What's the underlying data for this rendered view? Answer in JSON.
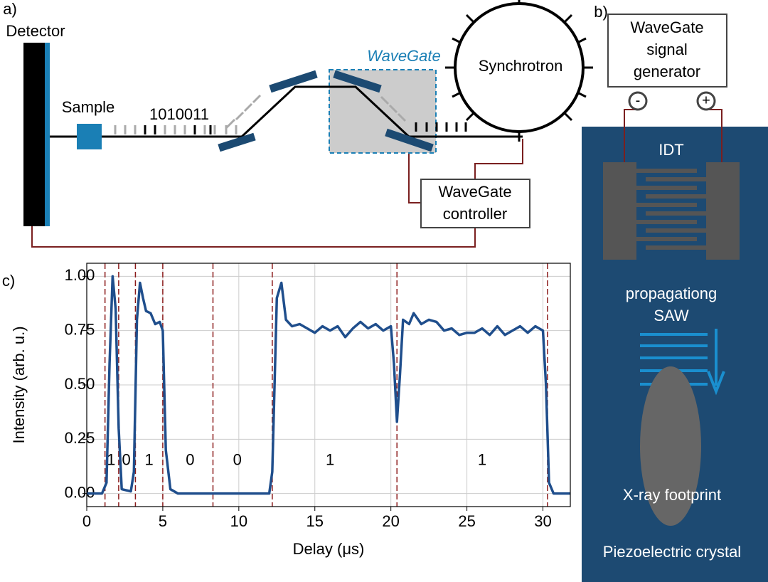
{
  "panels": {
    "a": "a)",
    "b": "b)",
    "c": "c)"
  },
  "diagram_a": {
    "detector": "Detector",
    "sample": "Sample",
    "bits": "1010011",
    "wavegate": "WaveGate",
    "synchrotron": "Synchrotron",
    "controller": [
      "WaveGate",
      "controller"
    ]
  },
  "diagram_b": {
    "generator": [
      "WaveGate",
      "signal",
      "generator"
    ],
    "minus": "-",
    "plus": "+",
    "idt": "IDT",
    "saw": [
      "propagationg",
      "SAW"
    ],
    "footprint": "X-ray footprint",
    "crystal": "Piezoelectric crystal"
  },
  "chart_data": {
    "type": "line",
    "x_label": "Delay (μs)",
    "y_label": "Intensity (arb. u.)",
    "xlim": [
      0,
      31.8
    ],
    "ylim": [
      -0.06,
      1.06
    ],
    "xticks": [
      0,
      5,
      10,
      15,
      20,
      25,
      30
    ],
    "yticks": [
      {
        "value": 0,
        "label": "0.00"
      },
      {
        "value": 0.25,
        "label": "0.25"
      },
      {
        "value": 0.5,
        "label": "0.50"
      },
      {
        "value": 0.75,
        "label": "0.75"
      },
      {
        "value": 1,
        "label": "1.00"
      }
    ],
    "grid": true,
    "vlines": {
      "color": "#8b1a1a",
      "x": [
        1.2,
        2.1,
        3.2,
        5.0,
        8.3,
        12.2,
        20.4,
        30.3
      ]
    },
    "bit_labels": [
      {
        "text": "1",
        "x": 1.6,
        "y": 0.15
      },
      {
        "text": "0",
        "x": 2.6,
        "y": 0.15
      },
      {
        "text": "1",
        "x": 4.1,
        "y": 0.15
      },
      {
        "text": "0",
        "x": 6.8,
        "y": 0.15
      },
      {
        "text": "0",
        "x": 9.9,
        "y": 0.15
      },
      {
        "text": "1",
        "x": 16,
        "y": 0.15
      },
      {
        "text": "1",
        "x": 26,
        "y": 0.15
      }
    ],
    "series": [
      {
        "color": "#1f4e8c",
        "x": [
          0,
          1.0,
          1.3,
          1.5,
          1.7,
          1.9,
          2.1,
          2.3,
          2.9,
          3.1,
          3.3,
          3.5,
          3.7,
          3.9,
          4.2,
          4.5,
          4.8,
          5.0,
          5.2,
          5.5,
          6,
          8,
          10,
          12,
          12.2,
          12.5,
          12.8,
          13.1,
          13.5,
          14,
          14.5,
          15,
          15.5,
          16,
          16.5,
          17,
          17.5,
          18,
          18.5,
          19,
          19.5,
          20,
          20.2,
          20.4,
          20.6,
          20.8,
          21.2,
          21.5,
          22,
          22.5,
          23,
          23.5,
          24,
          24.5,
          25,
          25.5,
          26,
          26.5,
          27,
          27.5,
          28,
          28.5,
          29,
          29.5,
          30,
          30.2,
          30.4,
          30.7,
          31.8
        ],
        "values": [
          0,
          0,
          0.05,
          0.6,
          1.0,
          0.85,
          0.3,
          0.02,
          0.01,
          0.1,
          0.8,
          0.97,
          0.9,
          0.84,
          0.83,
          0.78,
          0.79,
          0.75,
          0.2,
          0.02,
          0,
          0,
          0,
          0,
          0.1,
          0.9,
          0.97,
          0.8,
          0.77,
          0.78,
          0.76,
          0.74,
          0.77,
          0.75,
          0.77,
          0.72,
          0.76,
          0.79,
          0.76,
          0.78,
          0.75,
          0.77,
          0.6,
          0.33,
          0.55,
          0.8,
          0.78,
          0.83,
          0.78,
          0.8,
          0.79,
          0.75,
          0.76,
          0.73,
          0.74,
          0.74,
          0.76,
          0.73,
          0.77,
          0.73,
          0.75,
          0.77,
          0.74,
          0.77,
          0.75,
          0.5,
          0.05,
          0,
          0
        ]
      }
    ]
  }
}
